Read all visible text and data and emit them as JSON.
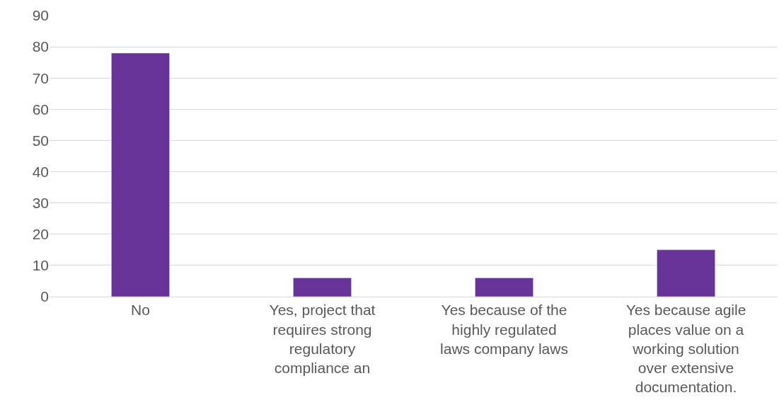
{
  "chart_data": {
    "type": "bar",
    "categories": [
      "No",
      "Yes, project that requires strong regulatory compliance an",
      "Yes because of the highly regulated laws company laws",
      "Yes because agile places value on a working solution over extensive documentation."
    ],
    "values": [
      78,
      6,
      6,
      15
    ],
    "color": "#673399",
    "ylim": [
      0,
      90
    ],
    "yticks": [
      0,
      10,
      20,
      30,
      40,
      50,
      60,
      70,
      80,
      90
    ],
    "grid": "y"
  }
}
